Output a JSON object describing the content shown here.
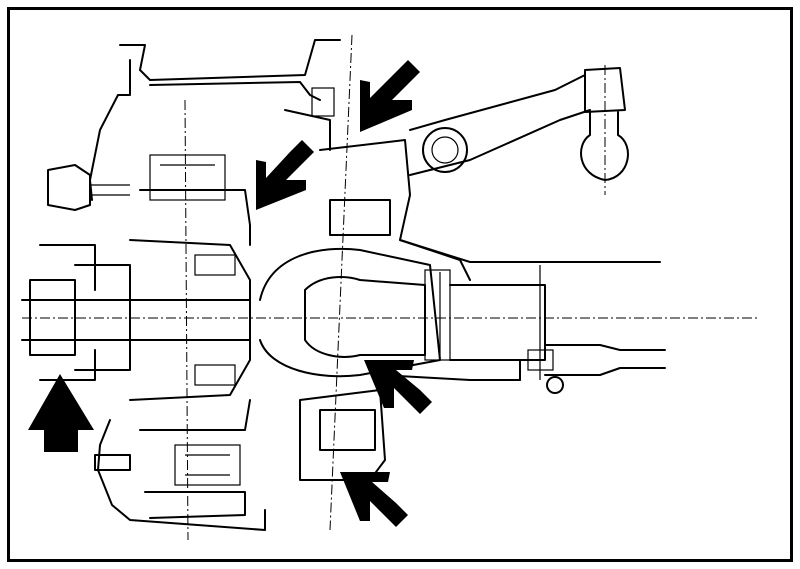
{
  "figure": {
    "kind": "technical-line-drawing",
    "subject": "front-axle-hub-and-steering-knuckle-cross-section",
    "border_color": "#000000",
    "background_color": "#ffffff",
    "indicator_arrows": [
      {
        "id": "arrow-upper-kingpin",
        "pointing": "down-left"
      },
      {
        "id": "arrow-upper-bolt",
        "pointing": "down-left"
      },
      {
        "id": "arrow-lower-joint",
        "pointing": "up-left"
      },
      {
        "id": "arrow-hub-bolt",
        "pointing": "up"
      },
      {
        "id": "arrow-lower-kingpin",
        "pointing": "up-left"
      }
    ]
  }
}
